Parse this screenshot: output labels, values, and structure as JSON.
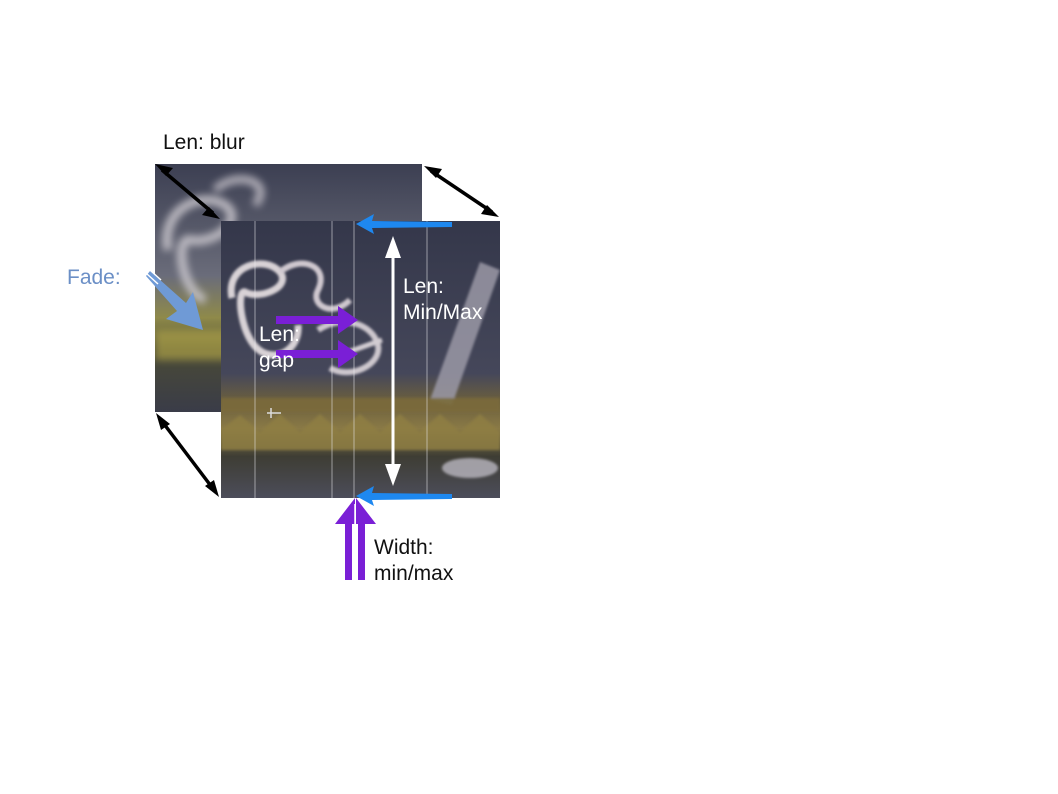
{
  "labels": {
    "len_blur": "Len: blur",
    "fade": "Fade:",
    "len_minmax_line1": "Len:",
    "len_minmax_line2": "Min/Max",
    "len_gap_line1": "Len:",
    "len_gap_line2": "gap",
    "width_line1": "Width:",
    "width_line2": "min/max"
  },
  "colors": {
    "black_arrow": "#000000",
    "white_arrow": "#ffffff",
    "purple_arrow": "#7a1fd6",
    "blue_arrow": "#1e88f0",
    "fade_arrow": "#6f9ad6",
    "fade_label": "#6b8fc6"
  },
  "icons": {
    "back_photo": "blurred-neon-sign-photo",
    "front_photo": "streaked-neon-sign-photo",
    "cursor": "crosshair-cursor-icon"
  }
}
